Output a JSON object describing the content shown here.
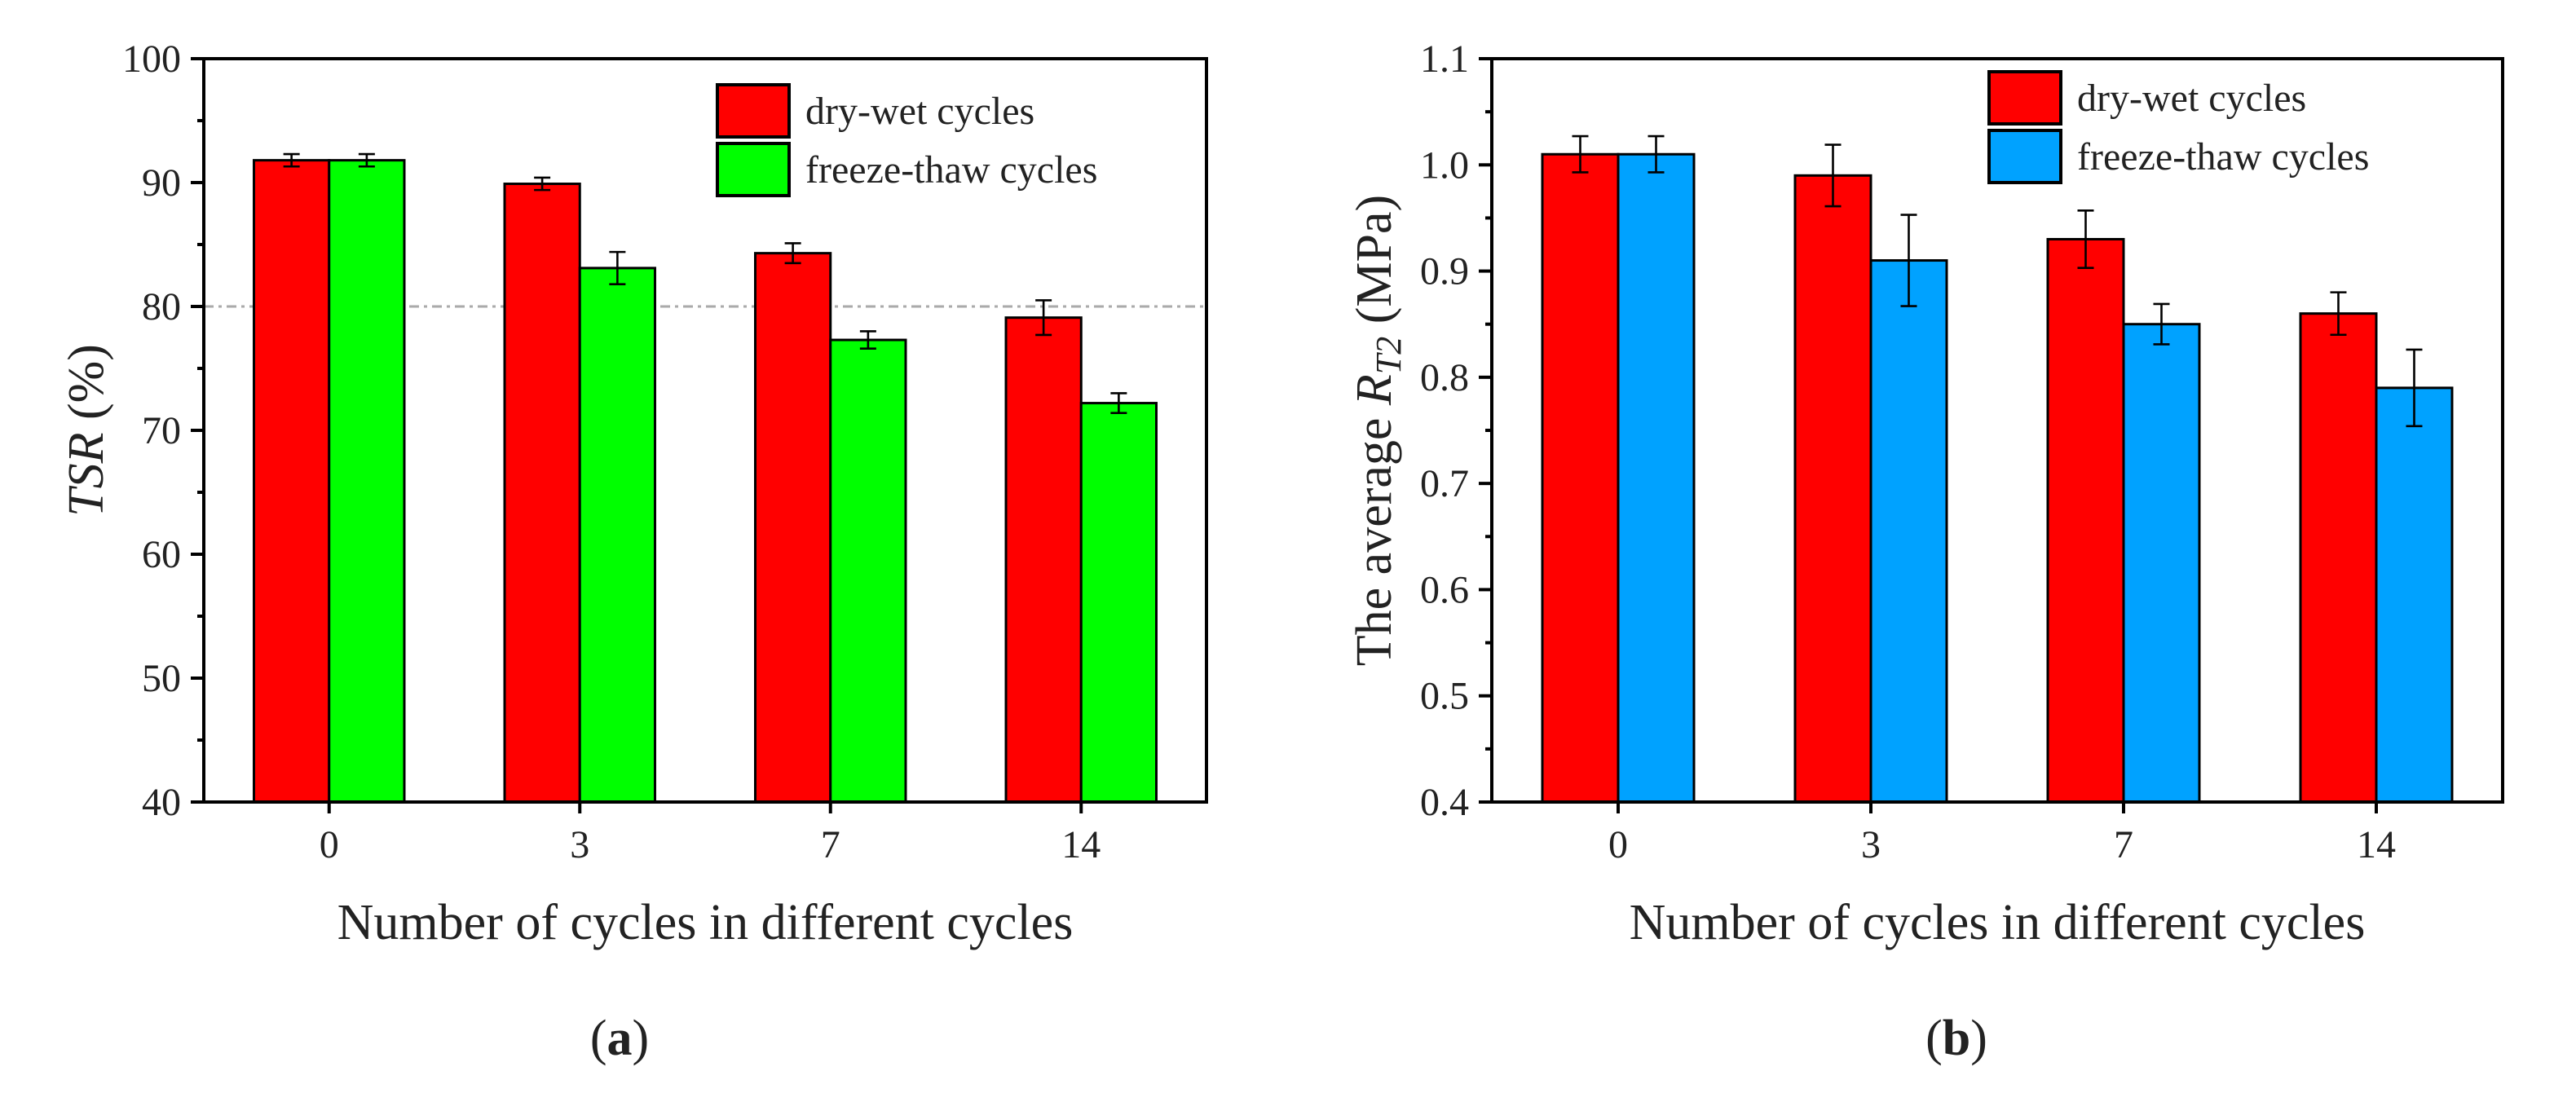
{
  "chart_data": [
    {
      "type": "bar",
      "panel_label": "a",
      "title": "",
      "xlabel": "Number of cycles in different cycles",
      "ylabel_italic": "TSR",
      "ylabel_rest": " (%)",
      "categories": [
        "0",
        "3",
        "7",
        "14"
      ],
      "ylim": [
        40,
        100
      ],
      "yticks": [
        "40",
        "50",
        "60",
        "70",
        "80",
        "90",
        "100"
      ],
      "ytick_values": [
        40,
        50,
        60,
        70,
        80,
        90,
        100
      ],
      "reference_line": 80,
      "legend_position": "top-right",
      "series": [
        {
          "name": "dry-wet cycles",
          "color": "#ff0000",
          "values": [
            91.8,
            89.9,
            84.3,
            79.1
          ],
          "errors": [
            0.5,
            0.5,
            0.8,
            1.4
          ]
        },
        {
          "name": "freeze-thaw cycles",
          "color": "#00ff00",
          "values": [
            91.8,
            83.1,
            77.3,
            72.2
          ],
          "errors": [
            0.5,
            1.3,
            0.7,
            0.8
          ]
        }
      ]
    },
    {
      "type": "bar",
      "panel_label": "b",
      "title": "",
      "xlabel": "Number of cycles in different cycles",
      "ylabel_pre": "The average ",
      "ylabel_italic": "R",
      "ylabel_sub": "T2",
      "ylabel_rest": " (MPa)",
      "categories": [
        "0",
        "3",
        "7",
        "14"
      ],
      "ylim": [
        0.4,
        1.1
      ],
      "yticks": [
        "0.4",
        "0.5",
        "0.6",
        "0.7",
        "0.8",
        "0.9",
        "1.0",
        "1.1"
      ],
      "ytick_values": [
        0.4,
        0.5,
        0.6,
        0.7,
        0.8,
        0.9,
        1.0,
        1.1
      ],
      "legend_position": "top-right",
      "series": [
        {
          "name": "dry-wet cycles",
          "color": "#ff0000",
          "values": [
            1.01,
            0.99,
            0.93,
            0.86
          ],
          "errors": [
            0.017,
            0.029,
            0.027,
            0.02
          ]
        },
        {
          "name": "freeze-thaw cycles",
          "color": "#00a2ff",
          "values": [
            1.01,
            0.91,
            0.85,
            0.79
          ],
          "errors": [
            0.017,
            0.043,
            0.019,
            0.036
          ]
        }
      ]
    }
  ],
  "captions": {
    "a": "a",
    "b": "b"
  }
}
